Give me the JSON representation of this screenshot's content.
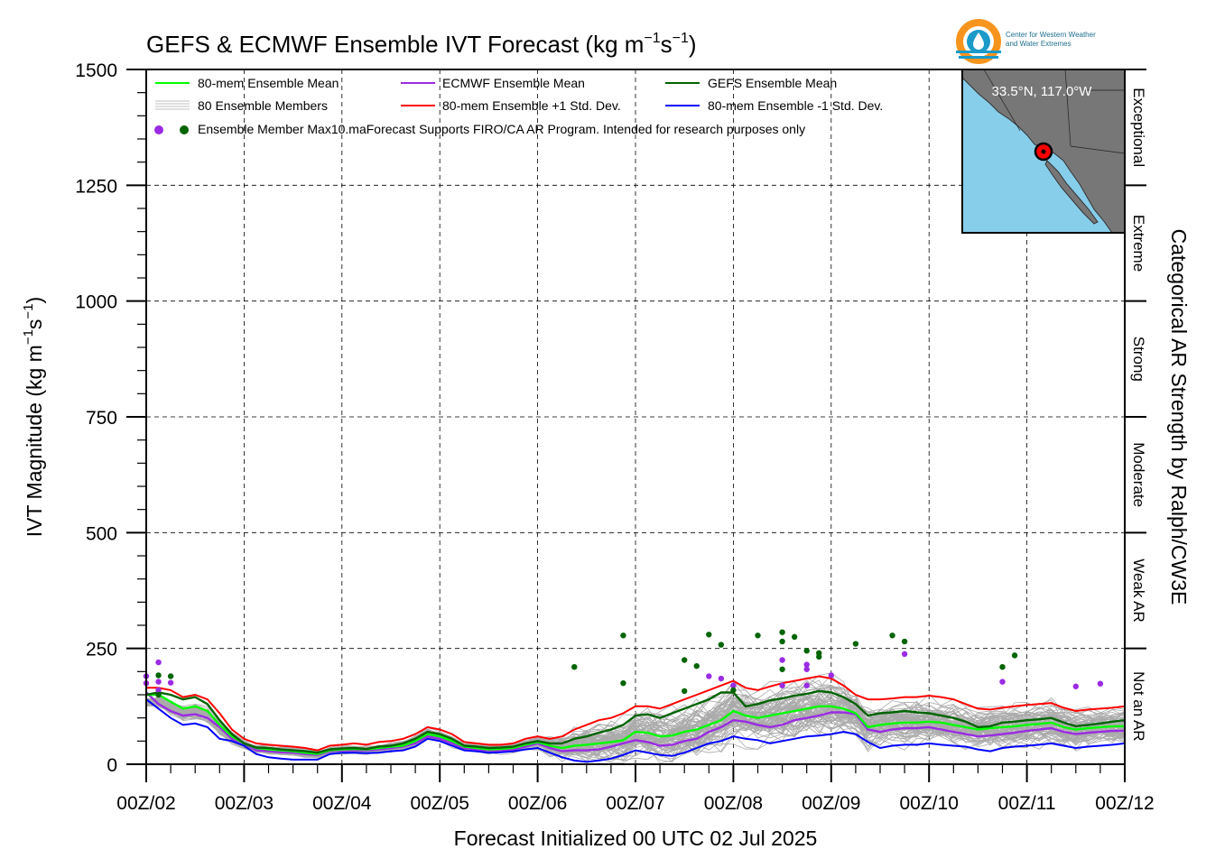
{
  "logo": {
    "line1": "Center for Western Weather",
    "line2": "and Water Extremes",
    "colors": {
      "ring": "#f7941d",
      "inner": "#1b9ac9"
    }
  },
  "inset": {
    "location": "33.5°N, 117.0°W",
    "ocean_color": "#87ceeb",
    "land_color": "#777777",
    "marker_color": "#ff0000"
  },
  "chart_data": {
    "type": "line",
    "title_main": "GEFS & ECMWF Ensemble IVT Forecast (kg m",
    "title_sup1": "−1",
    "title_mid": "s",
    "title_sup2": "−1",
    "title_end": ")",
    "ylabel_main": "IVT Magnitude (kg m",
    "ylabel_sup1": "−1",
    "ylabel_mid": "s",
    "ylabel_sup2": "−1",
    "ylabel_end": ")",
    "xlabel": "Forecast Initialized 00 UTC 02 Jul 2025",
    "right_label": "Categorical AR Strength by Ralph/CW3E",
    "ylim": [
      0,
      1500
    ],
    "xlim": [
      0,
      240
    ],
    "grid": true,
    "y_ticks": [
      {
        "value": 0,
        "label": "0"
      },
      {
        "value": 250,
        "label": "250"
      },
      {
        "value": 500,
        "label": "500"
      },
      {
        "value": 750,
        "label": "750"
      },
      {
        "value": 1000,
        "label": "1000"
      },
      {
        "value": 1250,
        "label": "1250"
      },
      {
        "value": 1500,
        "label": "1500"
      }
    ],
    "x_ticks": [
      {
        "value": 0,
        "label": "00Z/02"
      },
      {
        "value": 24,
        "label": "00Z/03"
      },
      {
        "value": 48,
        "label": "00Z/04"
      },
      {
        "value": 72,
        "label": "00Z/05"
      },
      {
        "value": 96,
        "label": "00Z/06"
      },
      {
        "value": 120,
        "label": "00Z/07"
      },
      {
        "value": 144,
        "label": "00Z/08"
      },
      {
        "value": 168,
        "label": "00Z/09"
      },
      {
        "value": 192,
        "label": "00Z/10"
      },
      {
        "value": 216,
        "label": "00Z/11"
      },
      {
        "value": 240,
        "label": "00Z/12"
      }
    ],
    "categories": [
      {
        "label": "Not an AR",
        "from": 0,
        "to": 250
      },
      {
        "label": "Weak AR",
        "from": 250,
        "to": 500
      },
      {
        "label": "Moderate",
        "from": 500,
        "to": 750
      },
      {
        "label": "Strong",
        "from": 750,
        "to": 1000
      },
      {
        "label": "Extreme",
        "from": 1000,
        "to": 1250
      },
      {
        "label": "Exceptional",
        "from": 1250,
        "to": 1500
      }
    ],
    "legend": {
      "placement": "top-left",
      "entries": [
        {
          "label": "80-mem Ensemble Mean",
          "color": "#00ff00",
          "style": "line"
        },
        {
          "label": "ECMWF Ensemble Mean",
          "color": "#9a2be2",
          "style": "line"
        },
        {
          "label": "GEFS Ensemble Mean",
          "color": "#006400",
          "style": "line"
        },
        {
          "label": "80 Ensemble Members",
          "color": "#aaaaaa",
          "style": "multiline"
        },
        {
          "label": "80-mem Ensemble +1 Std. Dev.",
          "color": "#ff0000",
          "style": "line"
        },
        {
          "label": "80-mem Ensemble -1 Std. Dev.",
          "color": "#0000ff",
          "style": "line"
        }
      ],
      "dots_label": "Ensemble Member Max",
      "dots_colors": [
        "#9a2be2",
        "#006400"
      ],
      "note": "10.maForecast Supports FIRO/CA AR Program. Intended for research purposes only"
    },
    "x": [
      0,
      3,
      6,
      9,
      12,
      15,
      18,
      21,
      24,
      27,
      30,
      33,
      36,
      39,
      42,
      45,
      48,
      51,
      54,
      57,
      60,
      63,
      66,
      69,
      72,
      75,
      78,
      81,
      84,
      87,
      90,
      93,
      96,
      99,
      102,
      105,
      108,
      111,
      114,
      117,
      120,
      123,
      126,
      129,
      132,
      135,
      138,
      141,
      144,
      147,
      150,
      153,
      156,
      159,
      162,
      165,
      168,
      171,
      174,
      177,
      180,
      183,
      186,
      189,
      192,
      195,
      198,
      201,
      204,
      207,
      210,
      213,
      216,
      219,
      222,
      225,
      228,
      231,
      234,
      237,
      240
    ],
    "series": [
      {
        "name": "80-mem Ensemble Mean",
        "color": "#00ff00",
        "width": 2.4,
        "values": [
          150,
          150,
          135,
          120,
          125,
          115,
          85,
          60,
          45,
          35,
          32,
          30,
          28,
          25,
          22,
          30,
          32,
          33,
          32,
          35,
          38,
          40,
          50,
          65,
          60,
          50,
          38,
          35,
          32,
          33,
          35,
          42,
          48,
          40,
          35,
          40,
          42,
          45,
          48,
          52,
          70,
          68,
          60,
          62,
          70,
          75,
          85,
          95,
          115,
          105,
          100,
          105,
          110,
          115,
          120,
          125,
          125,
          120,
          110,
          80,
          85,
          88,
          90,
          90,
          92,
          90,
          85,
          80,
          75,
          78,
          80,
          82,
          85,
          87,
          90,
          80,
          75,
          78,
          80,
          82,
          82
        ],
        "spread": 0
      },
      {
        "name": "ECMWF Ensemble Mean",
        "color": "#9a2be2",
        "width": 2.4,
        "values": [
          155,
          130,
          115,
          105,
          108,
          100,
          80,
          55,
          45,
          30,
          28,
          26,
          25,
          22,
          20,
          28,
          30,
          30,
          30,
          32,
          35,
          38,
          45,
          60,
          55,
          45,
          35,
          32,
          30,
          30,
          32,
          38,
          45,
          35,
          28,
          30,
          30,
          32,
          38,
          45,
          52,
          48,
          40,
          42,
          50,
          55,
          70,
          80,
          95,
          92,
          85,
          80,
          85,
          95,
          100,
          105,
          112,
          112,
          108,
          75,
          70,
          75,
          78,
          78,
          80,
          75,
          70,
          65,
          60,
          62,
          65,
          68,
          72,
          75,
          78,
          70,
          65,
          68,
          70,
          72,
          72
        ],
        "spread": 0
      },
      {
        "name": "GEFS Ensemble Mean",
        "color": "#006400",
        "width": 2.4,
        "values": [
          150,
          155,
          150,
          140,
          145,
          130,
          95,
          65,
          45,
          36,
          35,
          32,
          30,
          28,
          25,
          32,
          34,
          35,
          33,
          38,
          40,
          45,
          55,
          70,
          65,
          55,
          40,
          38,
          35,
          36,
          38,
          45,
          50,
          45,
          45,
          55,
          60,
          68,
          75,
          85,
          105,
          108,
          100,
          110,
          120,
          130,
          140,
          155,
          155,
          125,
          130,
          138,
          142,
          148,
          152,
          158,
          155,
          145,
          130,
          105,
          110,
          112,
          115,
          112,
          110,
          105,
          100,
          92,
          80,
          82,
          90,
          92,
          95,
          97,
          100,
          90,
          82,
          85,
          88,
          92,
          95
        ],
        "spread": 0
      },
      {
        "name": "80-mem Ensemble +1 Std. Dev.",
        "color": "#ff0000",
        "width": 2.0,
        "values": [
          165,
          165,
          160,
          145,
          150,
          140,
          110,
          75,
          55,
          45,
          42,
          40,
          38,
          35,
          30,
          40,
          42,
          45,
          42,
          48,
          50,
          55,
          65,
          80,
          75,
          65,
          48,
          45,
          42,
          42,
          45,
          55,
          60,
          55,
          60,
          75,
          85,
          95,
          100,
          110,
          125,
          125,
          120,
          130,
          140,
          150,
          160,
          170,
          180,
          165,
          160,
          168,
          175,
          180,
          185,
          190,
          185,
          170,
          150,
          140,
          140,
          142,
          145,
          145,
          148,
          145,
          140,
          130,
          120,
          118,
          122,
          125,
          128,
          130,
          132,
          122,
          115,
          118,
          120,
          122,
          125
        ],
        "spread": 0
      },
      {
        "name": "80-mem Ensemble -1 Std. Dev.",
        "color": "#0000ff",
        "width": 2.0,
        "values": [
          140,
          120,
          100,
          85,
          88,
          80,
          55,
          50,
          40,
          22,
          15,
          12,
          10,
          10,
          10,
          22,
          25,
          25,
          24,
          25,
          28,
          30,
          38,
          55,
          50,
          40,
          30,
          28,
          25,
          26,
          28,
          32,
          35,
          25,
          15,
          8,
          5,
          8,
          12,
          20,
          30,
          25,
          20,
          18,
          25,
          35,
          45,
          50,
          60,
          55,
          52,
          45,
          50,
          55,
          60,
          62,
          65,
          70,
          65,
          48,
          35,
          40,
          42,
          42,
          45,
          42,
          40,
          38,
          32,
          28,
          35,
          38,
          40,
          42,
          45,
          40,
          35,
          38,
          40,
          42,
          45
        ],
        "spread": 0
      },
      {
        "name": "80 Ensemble Members",
        "color": "#aaaaaa",
        "width": 0.8,
        "count": 80,
        "values": [
          150,
          150,
          135,
          120,
          125,
          115,
          85,
          60,
          45,
          35,
          32,
          30,
          28,
          25,
          22,
          30,
          32,
          33,
          32,
          35,
          38,
          40,
          50,
          65,
          60,
          50,
          38,
          35,
          32,
          33,
          35,
          42,
          48,
          40,
          35,
          40,
          42,
          45,
          48,
          52,
          70,
          68,
          60,
          62,
          70,
          75,
          85,
          95,
          115,
          105,
          100,
          105,
          110,
          115,
          120,
          125,
          125,
          120,
          110,
          80,
          85,
          88,
          90,
          90,
          92,
          90,
          85,
          80,
          75,
          78,
          80,
          82,
          85,
          87,
          90,
          80,
          75,
          78,
          80,
          82,
          82
        ],
        "spread": [
          18,
          18,
          20,
          20,
          20,
          20,
          18,
          14,
          10,
          10,
          10,
          10,
          10,
          10,
          10,
          10,
          10,
          10,
          10,
          10,
          12,
          12,
          14,
          14,
          12,
          12,
          10,
          10,
          10,
          10,
          12,
          14,
          16,
          24,
          30,
          40,
          50,
          55,
          60,
          62,
          60,
          60,
          60,
          62,
          62,
          65,
          65,
          68,
          70,
          65,
          65,
          68,
          70,
          72,
          72,
          74,
          72,
          70,
          62,
          55,
          55,
          55,
          55,
          55,
          55,
          55,
          55,
          52,
          50,
          50,
          50,
          50,
          50,
          50,
          50,
          50,
          48,
          48,
          48,
          50,
          50
        ]
      }
    ],
    "max_points": [
      {
        "x": 0,
        "y": 190,
        "series": "ECMWF"
      },
      {
        "x": 0,
        "y": 175,
        "series": "ECMWF"
      },
      {
        "x": 3,
        "y": 220,
        "series": "ECMWF"
      },
      {
        "x": 3,
        "y": 178,
        "series": "ECMWF"
      },
      {
        "x": 3,
        "y": 160,
        "series": "ECMWF"
      },
      {
        "x": 6,
        "y": 176,
        "series": "ECMWF"
      },
      {
        "x": 3,
        "y": 192,
        "series": "GEFS"
      },
      {
        "x": 6,
        "y": 190,
        "series": "GEFS"
      },
      {
        "x": 3,
        "y": 150,
        "series": "GEFS"
      },
      {
        "x": 105,
        "y": 210,
        "series": "GEFS"
      },
      {
        "x": 117,
        "y": 278,
        "series": "GEFS"
      },
      {
        "x": 117,
        "y": 175,
        "series": "GEFS"
      },
      {
        "x": 132,
        "y": 225,
        "series": "GEFS"
      },
      {
        "x": 132,
        "y": 158,
        "series": "GEFS"
      },
      {
        "x": 135,
        "y": 212,
        "series": "GEFS"
      },
      {
        "x": 138,
        "y": 280,
        "series": "GEFS"
      },
      {
        "x": 141,
        "y": 258,
        "series": "GEFS"
      },
      {
        "x": 138,
        "y": 190,
        "series": "ECMWF"
      },
      {
        "x": 141,
        "y": 185,
        "series": "ECMWF"
      },
      {
        "x": 144,
        "y": 170,
        "series": "ECMWF"
      },
      {
        "x": 144,
        "y": 160,
        "series": "GEFS"
      },
      {
        "x": 150,
        "y": 278,
        "series": "GEFS"
      },
      {
        "x": 156,
        "y": 285,
        "series": "GEFS"
      },
      {
        "x": 156,
        "y": 265,
        "series": "GEFS"
      },
      {
        "x": 159,
        "y": 275,
        "series": "GEFS"
      },
      {
        "x": 156,
        "y": 205,
        "series": "GEFS"
      },
      {
        "x": 156,
        "y": 225,
        "series": "ECMWF"
      },
      {
        "x": 156,
        "y": 170,
        "series": "ECMWF"
      },
      {
        "x": 162,
        "y": 245,
        "series": "GEFS"
      },
      {
        "x": 162,
        "y": 215,
        "series": "ECMWF"
      },
      {
        "x": 162,
        "y": 205,
        "series": "ECMWF"
      },
      {
        "x": 162,
        "y": 170,
        "series": "ECMWF"
      },
      {
        "x": 165,
        "y": 240,
        "series": "GEFS"
      },
      {
        "x": 165,
        "y": 232,
        "series": "GEFS"
      },
      {
        "x": 168,
        "y": 192,
        "series": "ECMWF"
      },
      {
        "x": 174,
        "y": 260,
        "series": "GEFS"
      },
      {
        "x": 183,
        "y": 278,
        "series": "GEFS"
      },
      {
        "x": 186,
        "y": 265,
        "series": "GEFS"
      },
      {
        "x": 186,
        "y": 238,
        "series": "ECMWF"
      },
      {
        "x": 210,
        "y": 210,
        "series": "GEFS"
      },
      {
        "x": 213,
        "y": 235,
        "series": "GEFS"
      },
      {
        "x": 210,
        "y": 178,
        "series": "ECMWF"
      },
      {
        "x": 228,
        "y": 168,
        "series": "ECMWF"
      },
      {
        "x": 234,
        "y": 174,
        "series": "ECMWF"
      }
    ]
  }
}
